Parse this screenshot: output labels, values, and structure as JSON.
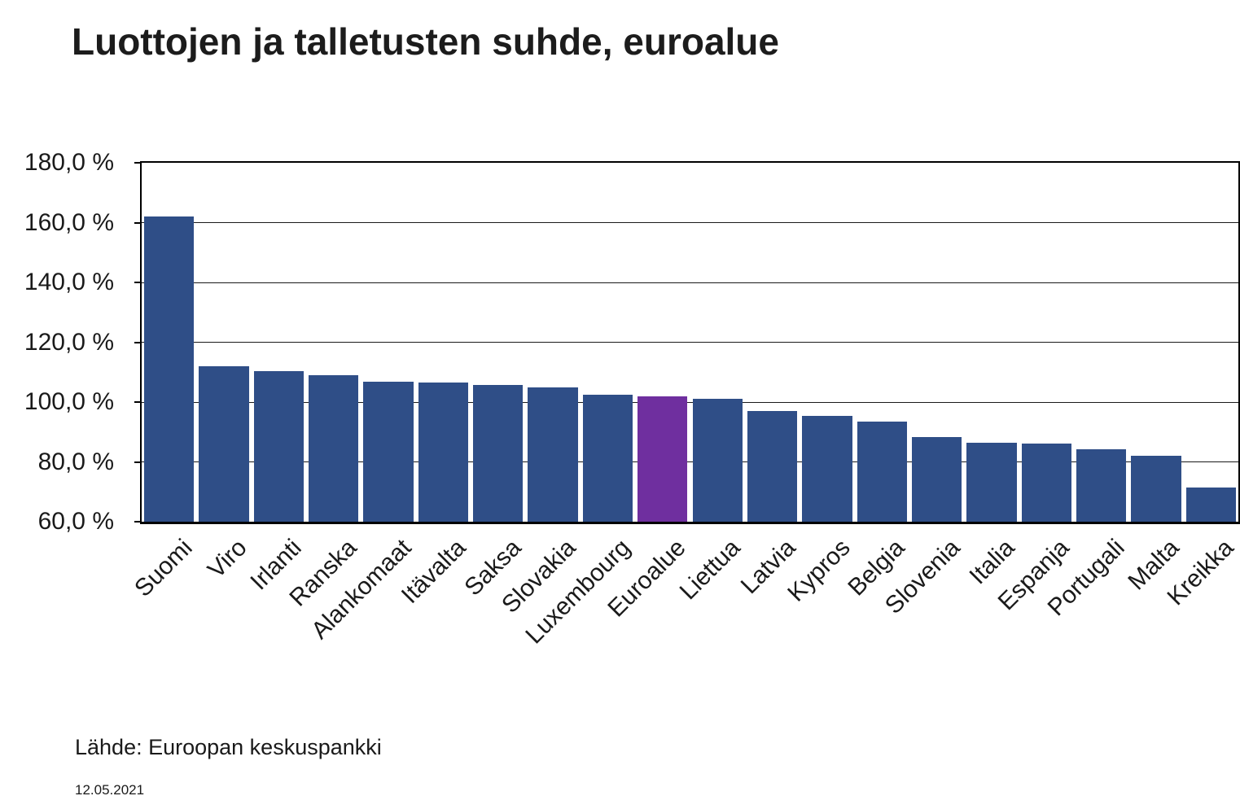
{
  "chart_data": {
    "type": "bar",
    "title": "Luottojen ja talletusten suhde, euroalue",
    "categories": [
      "Suomi",
      "Viro",
      "Irlanti",
      "Ranska",
      "Alankomaat",
      "Itävalta",
      "Saksa",
      "Slovakia",
      "Luxembourg",
      "Euroalue",
      "Liettua",
      "Latvia",
      "Kypros",
      "Belgia",
      "Slovenia",
      "Italia",
      "Espanja",
      "Portugali",
      "Malta",
      "Kreikka"
    ],
    "values": [
      162.0,
      111.9,
      110.4,
      109.0,
      106.8,
      106.6,
      105.8,
      104.8,
      102.4,
      101.9,
      101.0,
      96.9,
      95.5,
      93.5,
      88.3,
      86.4,
      86.0,
      84.1,
      82.1,
      71.4
    ],
    "unit": "%",
    "ylim": [
      60,
      180
    ],
    "ytick_step": 20,
    "ytick_labels": [
      "180,0 %",
      "160,0 %",
      "140,0 %",
      "120,0 %",
      "100,0 %",
      "80,0 %",
      "60,0 %"
    ],
    "grid": true,
    "legend": "none",
    "highlight_category": "Euroalue",
    "bar_color": "#2F4E87",
    "highlight_color": "#6F2F9F",
    "gridline_color": "#1a1a1a",
    "axis_color": "#000000"
  },
  "footer": {
    "source_label": "Lähde: Euroopan keskuspankki",
    "date": "12.05.2021"
  }
}
